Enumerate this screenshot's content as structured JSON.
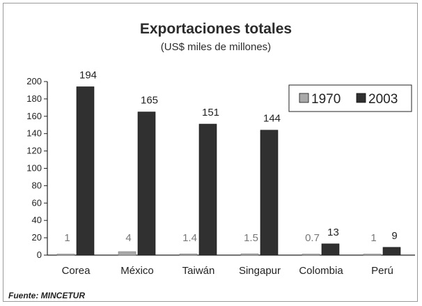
{
  "chart_data": {
    "type": "bar",
    "title": "Exportaciones totales",
    "subtitle": "(US$ miles de millones)",
    "categories": [
      "Corea",
      "México",
      "Taiwán",
      "Singapur",
      "Colombia",
      "Perú"
    ],
    "series": [
      {
        "name": "1970",
        "values": [
          1,
          4,
          1.4,
          1.5,
          0.7,
          1
        ],
        "labels": [
          "1",
          "4",
          "1.4",
          "1.5",
          "0.7",
          "1"
        ],
        "color": "#a9a9a9"
      },
      {
        "name": "2003",
        "values": [
          194,
          165,
          151,
          144,
          13,
          9
        ],
        "labels": [
          "194",
          "165",
          "151",
          "144",
          "13",
          "9"
        ],
        "color": "#303030"
      }
    ],
    "yticks": [
      0,
      20,
      40,
      60,
      80,
      100,
      120,
      140,
      160,
      180,
      200
    ],
    "ylim": [
      0,
      200
    ],
    "legend_position": "top-right",
    "grid": false,
    "source": "Fuente: MINCETUR"
  }
}
